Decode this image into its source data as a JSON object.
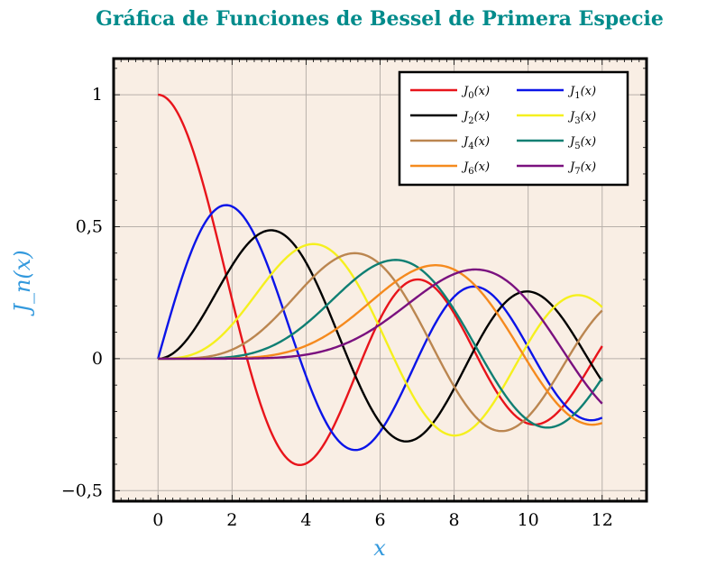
{
  "chart_data": {
    "type": "line",
    "title": "Gráfica de Funciones de Bessel de Primera Especie",
    "xlabel": "x",
    "ylabel": "J_n(x)",
    "xlim": [
      -1.2,
      13.2
    ],
    "ylim": [
      -0.54,
      1.137
    ],
    "xticks": [
      0,
      2,
      4,
      6,
      8,
      10,
      12
    ],
    "xtick_labels": [
      "0",
      "2",
      "4",
      "6",
      "8",
      "10",
      "12"
    ],
    "yticks": [
      -0.5,
      0,
      0.5,
      1
    ],
    "ytick_labels": [
      "−0,5",
      "0",
      "0,5",
      "1"
    ],
    "grid": true,
    "legend_placement": "top-right",
    "legend_columns": 2,
    "background": "#f9eee4",
    "x_domain": [
      0,
      12
    ],
    "function": "Bessel function of the first kind J_n(x)",
    "series": [
      {
        "name": "J0(x)",
        "sub": "0",
        "order": 0,
        "color": "#e8141b"
      },
      {
        "name": "J1(x)",
        "sub": "1",
        "order": 1,
        "color": "#0a14e8"
      },
      {
        "name": "J2(x)",
        "sub": "2",
        "order": 2,
        "color": "#000000"
      },
      {
        "name": "J3(x)",
        "sub": "3",
        "order": 3,
        "color": "#f5f01e"
      },
      {
        "name": "J4(x)",
        "sub": "4",
        "order": 4,
        "color": "#bb8650"
      },
      {
        "name": "J5(x)",
        "sub": "5",
        "order": 5,
        "color": "#0f7f73"
      },
      {
        "name": "J6(x)",
        "sub": "6",
        "order": 6,
        "color": "#f58a1e"
      },
      {
        "name": "J7(x)",
        "sub": "7",
        "order": 7,
        "color": "#7a117f"
      }
    ]
  }
}
